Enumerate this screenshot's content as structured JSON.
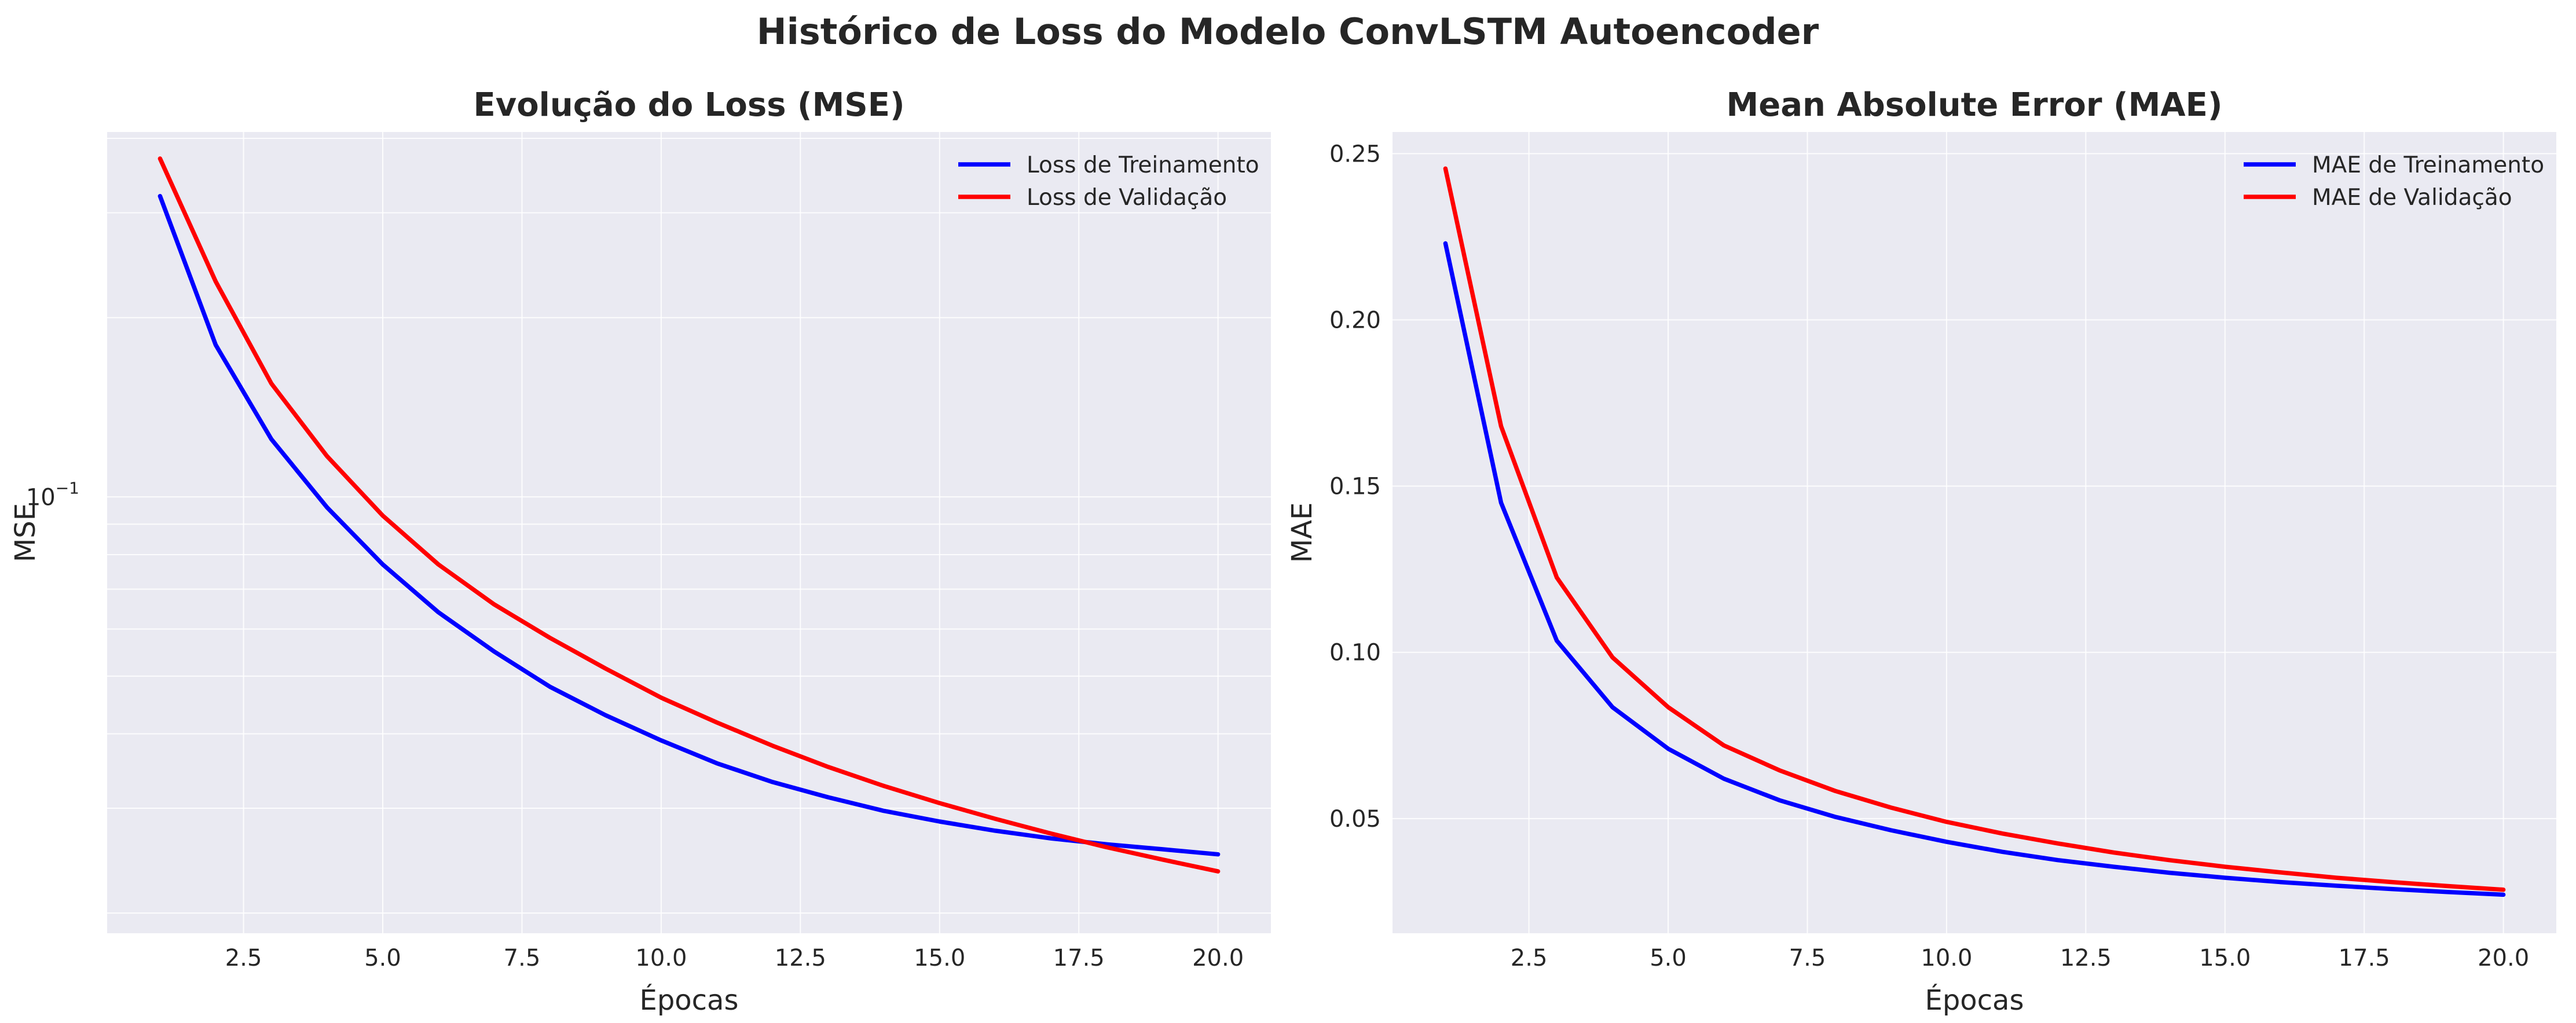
{
  "figure": {
    "title": "Histórico de Loss do Modelo ConvLSTM Autoencoder",
    "colors": {
      "train": "#0000ff",
      "val": "#ff0000",
      "axes_bg": "#eaeaf2",
      "grid": "#ffffff"
    }
  },
  "chart_data": [
    {
      "type": "line",
      "title": "Evolução do Loss (MSE)",
      "xlabel": "Épocas",
      "ylabel": "MSE",
      "yscale": "log",
      "xlim": [
        0.05,
        20.95
      ],
      "ylim": [
        0.0185,
        0.41
      ],
      "x_ticks": [
        2.5,
        5.0,
        7.5,
        10.0,
        12.5,
        15.0,
        17.5,
        20.0
      ],
      "x_tick_labels": [
        "2.5",
        "5.0",
        "7.5",
        "10.0",
        "12.5",
        "15.0",
        "17.5",
        "20.0"
      ],
      "y_ticks": [
        0.1
      ],
      "y_tick_labels": [
        "10"
      ],
      "y_tick_exponent": "−1",
      "grid": true,
      "legend_position": "top-right",
      "x": [
        1,
        2,
        3,
        4,
        5,
        6,
        7,
        8,
        9,
        10,
        11,
        12,
        13,
        14,
        15,
        16,
        17,
        18,
        19,
        20
      ],
      "series": [
        {
          "name": "Loss de Treinamento",
          "color": "#0000ff",
          "values": [
            0.32,
            0.18,
            0.125,
            0.096,
            0.077,
            0.064,
            0.055,
            0.048,
            0.043,
            0.039,
            0.0357,
            0.0332,
            0.0313,
            0.0297,
            0.0285,
            0.0275,
            0.0267,
            0.0261,
            0.0256,
            0.0251
          ]
        },
        {
          "name": "Loss de Validação",
          "color": "#ff0000",
          "values": [
            0.37,
            0.23,
            0.155,
            0.117,
            0.093,
            0.077,
            0.066,
            0.058,
            0.0515,
            0.046,
            0.0418,
            0.0382,
            0.0352,
            0.0327,
            0.0306,
            0.0288,
            0.0272,
            0.0258,
            0.0246,
            0.0235
          ]
        }
      ]
    },
    {
      "type": "line",
      "title": "Mean Absolute Error (MAE)",
      "xlabel": "Épocas",
      "ylabel": "MAE",
      "yscale": "linear",
      "xlim": [
        0.05,
        20.95
      ],
      "ylim": [
        0.0155,
        0.2565
      ],
      "x_ticks": [
        2.5,
        5.0,
        7.5,
        10.0,
        12.5,
        15.0,
        17.5,
        20.0
      ],
      "x_tick_labels": [
        "2.5",
        "5.0",
        "7.5",
        "10.0",
        "12.5",
        "15.0",
        "17.5",
        "20.0"
      ],
      "y_ticks": [
        0.05,
        0.1,
        0.15,
        0.2,
        0.25
      ],
      "y_tick_labels": [
        "0.05",
        "0.10",
        "0.15",
        "0.20",
        "0.25"
      ],
      "grid": true,
      "legend_position": "top-right",
      "x": [
        1,
        2,
        3,
        4,
        5,
        6,
        7,
        8,
        9,
        10,
        11,
        12,
        13,
        14,
        15,
        16,
        17,
        18,
        19,
        20
      ],
      "series": [
        {
          "name": "MAE de Treinamento",
          "color": "#0000ff",
          "values": [
            0.223,
            0.145,
            0.1035,
            0.0835,
            0.071,
            0.062,
            0.0555,
            0.0505,
            0.0465,
            0.043,
            0.04,
            0.0375,
            0.0355,
            0.0337,
            0.0322,
            0.0309,
            0.0298,
            0.0288,
            0.0279,
            0.0271
          ]
        },
        {
          "name": "MAE de Validação",
          "color": "#ff0000",
          "values": [
            0.2455,
            0.168,
            0.1225,
            0.0985,
            0.0835,
            0.072,
            0.0645,
            0.0583,
            0.0533,
            0.049,
            0.0455,
            0.0425,
            0.0398,
            0.0375,
            0.0355,
            0.0338,
            0.0322,
            0.0309,
            0.0297,
            0.0286
          ]
        }
      ]
    }
  ]
}
